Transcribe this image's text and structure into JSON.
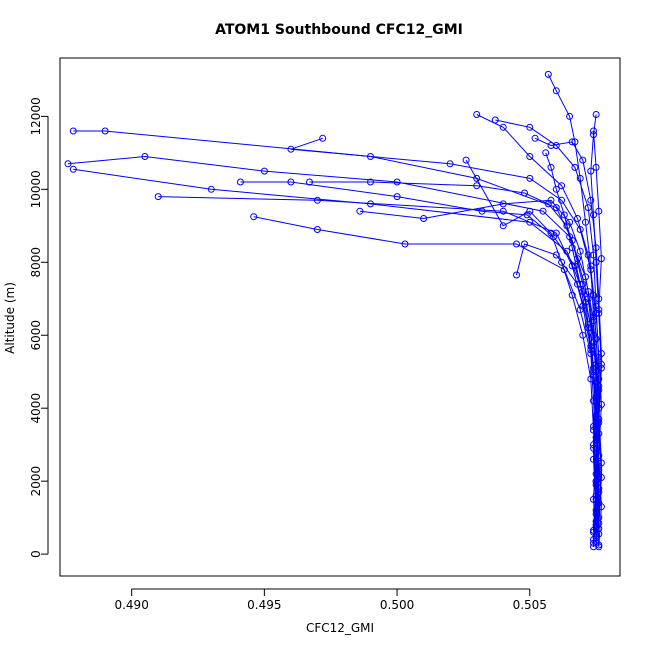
{
  "chart_data": {
    "type": "line",
    "title": "ATOM1 Southbound CFC12_GMI",
    "xlabel": "CFC12_GMI",
    "ylabel": "Altitude (m)",
    "xlim": [
      0.4873,
      0.5084
    ],
    "ylim": [
      -600,
      13600
    ],
    "x_ticks": [
      0.49,
      0.495,
      0.5,
      0.505
    ],
    "x_tick_labels": [
      "0.490",
      "0.495",
      "0.500",
      "0.505"
    ],
    "y_ticks": [
      0,
      2000,
      4000,
      6000,
      8000,
      10000,
      12000
    ],
    "y_tick_labels": [
      "0",
      "2000",
      "4000",
      "6000",
      "8000",
      "10000",
      "12000"
    ],
    "series_color": "#0000ff",
    "markers": "open-circle",
    "grid": false,
    "legend": "none",
    "series": [
      {
        "points": [
          [
            0.5074,
            200
          ],
          [
            0.5075,
            1200
          ],
          [
            0.5074,
            2600
          ],
          [
            0.5075,
            3800
          ],
          [
            0.5074,
            5000
          ],
          [
            0.5073,
            6200
          ],
          [
            0.507,
            7400
          ],
          [
            0.5066,
            8600
          ],
          [
            0.506,
            9500
          ],
          [
            0.503,
            10300
          ],
          [
            0.499,
            10900
          ],
          [
            0.489,
            11600
          ],
          [
            0.4878,
            11600
          ]
        ]
      },
      {
        "points": [
          [
            0.5075,
            300
          ],
          [
            0.5076,
            1400
          ],
          [
            0.5075,
            2800
          ],
          [
            0.5076,
            4000
          ],
          [
            0.5075,
            5200
          ],
          [
            0.5074,
            6400
          ],
          [
            0.5071,
            7600
          ],
          [
            0.5065,
            8700
          ],
          [
            0.5055,
            9400
          ],
          [
            0.5,
            10200
          ],
          [
            0.495,
            10500
          ],
          [
            0.4905,
            10900
          ],
          [
            0.4876,
            10700
          ]
        ]
      },
      {
        "points": [
          [
            0.5076,
            250
          ],
          [
            0.5075,
            1100
          ],
          [
            0.5076,
            2400
          ],
          [
            0.5075,
            3600
          ],
          [
            0.5076,
            4800
          ],
          [
            0.5074,
            6000
          ],
          [
            0.507,
            7200
          ],
          [
            0.5064,
            8300
          ],
          [
            0.505,
            9100
          ],
          [
            0.499,
            9600
          ],
          [
            0.493,
            10000
          ],
          [
            0.4878,
            10550
          ]
        ]
      },
      {
        "points": [
          [
            0.5074,
            400
          ],
          [
            0.5075,
            1600
          ],
          [
            0.5074,
            3000
          ],
          [
            0.5075,
            4300
          ],
          [
            0.5073,
            5600
          ],
          [
            0.507,
            6800
          ],
          [
            0.5066,
            7900
          ],
          [
            0.506,
            8800
          ],
          [
            0.504,
            9400
          ],
          [
            0.497,
            9700
          ],
          [
            0.491,
            9800
          ]
        ]
      },
      {
        "points": [
          [
            0.5075,
            350
          ],
          [
            0.5074,
            1500
          ],
          [
            0.5075,
            2900
          ],
          [
            0.5074,
            4200
          ],
          [
            0.5073,
            5500
          ],
          [
            0.5069,
            6700
          ],
          [
            0.5063,
            7800
          ],
          [
            0.5045,
            8500
          ],
          [
            0.5003,
            8500
          ],
          [
            0.497,
            8900
          ],
          [
            0.4946,
            9250
          ]
        ]
      },
      {
        "points": [
          [
            0.5076,
            200
          ],
          [
            0.5077,
            1300
          ],
          [
            0.5076,
            2700
          ],
          [
            0.5077,
            4100
          ],
          [
            0.5076,
            5400
          ],
          [
            0.5075,
            6600
          ],
          [
            0.5073,
            7800
          ],
          [
            0.5069,
            8900
          ],
          [
            0.5062,
            9700
          ],
          [
            0.505,
            10300
          ],
          [
            0.502,
            10700
          ],
          [
            0.496,
            11100
          ],
          [
            0.4972,
            11400
          ]
        ]
      },
      {
        "points": [
          [
            0.5075,
            500
          ],
          [
            0.5076,
            1800
          ],
          [
            0.5075,
            3200
          ],
          [
            0.5076,
            4600
          ],
          [
            0.5075,
            5900
          ],
          [
            0.5074,
            7100
          ],
          [
            0.5072,
            8200
          ],
          [
            0.5068,
            9200
          ],
          [
            0.5062,
            10100
          ],
          [
            0.505,
            10900
          ],
          [
            0.504,
            11700
          ],
          [
            0.503,
            12050
          ]
        ]
      },
      {
        "points": [
          [
            0.5074,
            600
          ],
          [
            0.5075,
            2000
          ],
          [
            0.5074,
            3500
          ],
          [
            0.5075,
            5000
          ],
          [
            0.5074,
            6500
          ],
          [
            0.5073,
            7900
          ],
          [
            0.5071,
            9100
          ],
          [
            0.5069,
            10300
          ],
          [
            0.5067,
            11300
          ],
          [
            0.5065,
            12000
          ],
          [
            0.506,
            12700
          ],
          [
            0.5057,
            13150
          ]
        ]
      },
      {
        "points": [
          [
            0.5076,
            700
          ],
          [
            0.5077,
            2100
          ],
          [
            0.5076,
            3600
          ],
          [
            0.5077,
            5100
          ],
          [
            0.5076,
            6600
          ],
          [
            0.5075,
            8000
          ],
          [
            0.5074,
            9300
          ],
          [
            0.5073,
            10500
          ],
          [
            0.5074,
            11500
          ],
          [
            0.5075,
            12050
          ]
        ]
      },
      {
        "points": [
          [
            0.5075,
            450
          ],
          [
            0.5076,
            1700
          ],
          [
            0.5075,
            3100
          ],
          [
            0.5076,
            4500
          ],
          [
            0.5074,
            5800
          ],
          [
            0.5072,
            7000
          ],
          [
            0.5068,
            8100
          ],
          [
            0.5064,
            9000
          ],
          [
            0.5057,
            9600
          ],
          [
            0.5048,
            9900
          ],
          [
            0.503,
            10100
          ],
          [
            0.499,
            10200
          ],
          [
            0.4967,
            10200
          ]
        ]
      },
      {
        "points": [
          [
            0.5074,
            300
          ],
          [
            0.5075,
            1500
          ],
          [
            0.5074,
            2900
          ],
          [
            0.5075,
            4300
          ],
          [
            0.5073,
            5700
          ],
          [
            0.5071,
            6900
          ],
          [
            0.5067,
            7900
          ],
          [
            0.5059,
            8700
          ],
          [
            0.5049,
            9300
          ],
          [
            0.5032,
            9400
          ],
          [
            0.5,
            9800
          ],
          [
            0.496,
            10200
          ],
          [
            0.4941,
            10200
          ]
        ]
      },
      {
        "points": [
          [
            0.5076,
            550
          ],
          [
            0.5075,
            1900
          ],
          [
            0.5076,
            3300
          ],
          [
            0.5075,
            4700
          ],
          [
            0.5074,
            6000
          ],
          [
            0.5072,
            7200
          ],
          [
            0.5069,
            8300
          ],
          [
            0.5065,
            9100
          ],
          [
            0.5058,
            9700
          ],
          [
            0.504,
            9600
          ],
          [
            0.501,
            9200
          ],
          [
            0.4986,
            9400
          ]
        ]
      },
      {
        "points": [
          [
            0.5075,
            800
          ],
          [
            0.5076,
            2200
          ],
          [
            0.5075,
            3700
          ],
          [
            0.5074,
            5100
          ],
          [
            0.5072,
            6300
          ],
          [
            0.5068,
            7400
          ],
          [
            0.506,
            8200
          ],
          [
            0.5048,
            8500
          ],
          [
            0.5045,
            7650
          ]
        ]
      },
      {
        "points": [
          [
            0.5075,
            900
          ],
          [
            0.5076,
            2300
          ],
          [
            0.5075,
            3800
          ],
          [
            0.5076,
            5300
          ],
          [
            0.5075,
            6800
          ],
          [
            0.5074,
            8200
          ],
          [
            0.5072,
            9500
          ],
          [
            0.5067,
            10600
          ],
          [
            0.506,
            11200
          ],
          [
            0.505,
            11700
          ],
          [
            0.5037,
            11900
          ]
        ]
      },
      {
        "points": [
          [
            0.5076,
            1000
          ],
          [
            0.5077,
            2500
          ],
          [
            0.5076,
            4000
          ],
          [
            0.5077,
            5500
          ],
          [
            0.5076,
            7000
          ],
          [
            0.5075,
            8400
          ],
          [
            0.5073,
            9700
          ],
          [
            0.507,
            10800
          ],
          [
            0.5066,
            11300
          ],
          [
            0.5058,
            11200
          ],
          [
            0.5052,
            11400
          ]
        ]
      },
      {
        "points": [
          [
            0.5074,
            650
          ],
          [
            0.5075,
            2000
          ],
          [
            0.5074,
            3400
          ],
          [
            0.5073,
            4800
          ],
          [
            0.507,
            6000
          ],
          [
            0.5066,
            7100
          ],
          [
            0.5062,
            8000
          ],
          [
            0.5058,
            8800
          ],
          [
            0.505,
            9400
          ],
          [
            0.504,
            9000
          ],
          [
            0.5026,
            10800
          ]
        ]
      },
      {
        "points": [
          [
            0.5075,
            750
          ],
          [
            0.5076,
            2100
          ],
          [
            0.5075,
            3500
          ],
          [
            0.5074,
            4900
          ],
          [
            0.5072,
            6200
          ],
          [
            0.5069,
            7400
          ],
          [
            0.5066,
            8400
          ],
          [
            0.5063,
            9300
          ],
          [
            0.506,
            10000
          ],
          [
            0.5058,
            10600
          ],
          [
            0.5056,
            11000
          ]
        ]
      },
      {
        "points": [
          [
            0.5076,
            850
          ],
          [
            0.5075,
            2200
          ],
          [
            0.5076,
            3700
          ],
          [
            0.5077,
            5200
          ],
          [
            0.5076,
            6700
          ],
          [
            0.5077,
            8100
          ],
          [
            0.5076,
            9400
          ],
          [
            0.5075,
            10600
          ],
          [
            0.5074,
            11600
          ]
        ]
      }
    ]
  }
}
